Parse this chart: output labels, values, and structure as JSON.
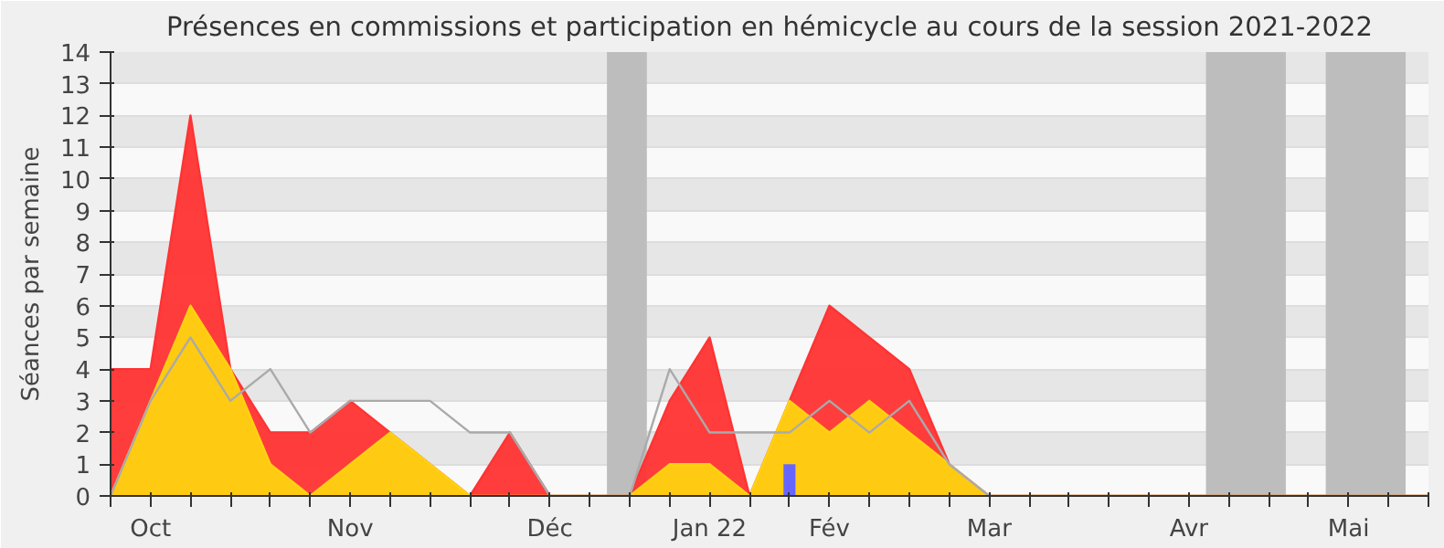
{
  "chart_data": {
    "type": "area",
    "title": "Présences en commissions et participation en hémicycle au cours de la session 2021-2022",
    "ylabel": "Séances par semaine",
    "x": [
      "2021-09-28",
      "2021-10-05",
      "2021-10-12",
      "2021-10-19",
      "2021-10-26",
      "2021-11-02",
      "2021-11-09",
      "2021-11-16",
      "2021-11-23",
      "2021-11-30",
      "2021-12-07",
      "2021-12-14",
      "2021-12-21",
      "2021-12-28",
      "2022-01-04",
      "2022-01-11",
      "2022-01-18",
      "2022-01-25",
      "2022-02-01",
      "2022-02-08",
      "2022-02-15",
      "2022-02-22",
      "2022-03-01",
      "2022-03-08",
      "2022-03-15",
      "2022-03-22",
      "2022-03-29",
      "2022-04-05",
      "2022-04-12",
      "2022-04-19",
      "2022-04-26",
      "2022-05-03",
      "2022-05-10",
      "2022-05-17"
    ],
    "series": [
      {
        "type": "area",
        "color": "#ff3333",
        "values": [
          4,
          4,
          12,
          4,
          2,
          2,
          3,
          2,
          1,
          0,
          2,
          0,
          0,
          0,
          3,
          5,
          0,
          3,
          6,
          5,
          4,
          1,
          0,
          0,
          0,
          0,
          0,
          0,
          0,
          0,
          0,
          0,
          0,
          0
        ]
      },
      {
        "color": "#ffd210",
        "values": [
          0,
          3,
          6,
          4,
          1,
          0,
          1,
          2,
          1,
          0,
          0,
          0,
          0,
          0,
          1,
          1,
          0,
          3,
          2,
          3,
          2,
          1,
          0,
          0,
          0,
          0,
          0,
          0,
          0,
          0,
          0,
          0,
          0,
          0
        ]
      },
      {
        "type": "line",
        "color": "#aaaaaa",
        "values": [
          0,
          3,
          5,
          3,
          4,
          2,
          3,
          3,
          3,
          2,
          2,
          0,
          0,
          0,
          4,
          2,
          2,
          2,
          3,
          2,
          3,
          1,
          0,
          0,
          0,
          0,
          0,
          0,
          0,
          0,
          0,
          0,
          0,
          0
        ]
      },
      {
        "type": "bar",
        "color": "#6666ff",
        "x": [
          "2022-01-25"
        ],
        "values": [
          1
        ]
      }
    ],
    "bands": [
      {
        "axis": "x",
        "from": "2021-12-24",
        "to": "2021-12-31",
        "color": "#bdbdbd"
      },
      {
        "axis": "x",
        "from": "2022-04-08",
        "to": "2022-04-22",
        "color": "#bdbdbd"
      },
      {
        "axis": "x",
        "from": "2022-04-29",
        "to": "2022-05-13",
        "color": "#bdbdbd"
      }
    ],
    "xlim": [
      "2021-09-28",
      "2022-05-17"
    ],
    "ylim": [
      0,
      14
    ],
    "xticks": [
      {
        "value": "2021-09-28",
        "label": null
      },
      {
        "value": "2021-10-05",
        "label": "Oct"
      },
      {
        "value": "2021-10-12",
        "label": null
      },
      {
        "value": "2021-10-19",
        "label": null
      },
      {
        "value": "2021-10-26",
        "label": null
      },
      {
        "value": "2021-11-02",
        "label": null
      },
      {
        "value": "2021-11-09",
        "label": "Nov"
      },
      {
        "value": "2021-11-16",
        "label": null
      },
      {
        "value": "2021-11-23",
        "label": null
      },
      {
        "value": "2021-11-30",
        "label": null
      },
      {
        "value": "2021-12-07",
        "label": null
      },
      {
        "value": "2021-12-14",
        "label": "Déc"
      },
      {
        "value": "2021-12-21",
        "label": null
      },
      {
        "value": "2021-12-28",
        "label": null
      },
      {
        "value": "2022-01-04",
        "label": null
      },
      {
        "value": "2022-01-11",
        "label": "Jan 22"
      },
      {
        "value": "2022-01-18",
        "label": null
      },
      {
        "value": "2022-01-25",
        "label": null
      },
      {
        "value": "2022-02-01",
        "label": "Fév"
      },
      {
        "value": "2022-02-08",
        "label": null
      },
      {
        "value": "2022-02-15",
        "label": null
      },
      {
        "value": "2022-02-22",
        "label": null
      },
      {
        "value": "2022-03-01",
        "label": "Mar"
      },
      {
        "value": "2022-03-08",
        "label": null
      },
      {
        "value": "2022-03-15",
        "label": null
      },
      {
        "value": "2022-03-22",
        "label": null
      },
      {
        "value": "2022-03-29",
        "label": null
      },
      {
        "value": "2022-04-05",
        "label": "Avr"
      },
      {
        "value": "2022-04-12",
        "label": null
      },
      {
        "value": "2022-04-19",
        "label": null
      },
      {
        "value": "2022-04-26",
        "label": null
      },
      {
        "value": "2022-05-03",
        "label": "Mai"
      },
      {
        "value": "2022-05-10",
        "label": null
      },
      {
        "value": "2022-05-17",
        "label": null
      }
    ],
    "yticks": [
      0,
      1,
      2,
      3,
      4,
      5,
      6,
      7,
      8,
      9,
      10,
      11,
      12,
      13,
      14
    ],
    "grid": "y"
  }
}
